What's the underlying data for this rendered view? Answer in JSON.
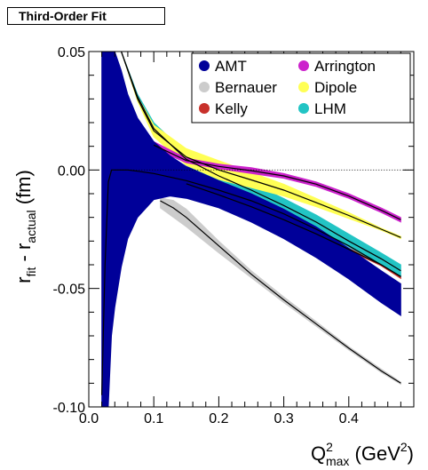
{
  "chart_data": {
    "type": "area",
    "title": "Third-Order Fit",
    "xlabel": {
      "main": "Q",
      "sup": "2",
      "sub": "max",
      "unit": " (GeV",
      "unit_sup": "2",
      "unit_close": ")"
    },
    "ylabel": {
      "main": "r",
      "sub1": "fit",
      "mid": " - r",
      "sub2": "actual",
      "unit": " (fm)"
    },
    "xlim": [
      0.0,
      0.5
    ],
    "ylim": [
      -0.1,
      0.05
    ],
    "x_ticks": [
      "0.0",
      "0.1",
      "0.2",
      "0.3",
      "0.4"
    ],
    "x_tick_values": [
      0.0,
      0.1,
      0.2,
      0.3,
      0.4
    ],
    "y_ticks": [
      "-0.10",
      "-0.05",
      "0.00",
      "0.05"
    ],
    "y_tick_values": [
      -0.1,
      -0.05,
      0.0,
      0.05
    ],
    "reference_line_y": 0.0,
    "legend_position": "top-right",
    "series": [
      {
        "name": "Bernauer",
        "color": "#cccccc",
        "x": [
          0.11,
          0.13,
          0.15,
          0.2,
          0.25,
          0.3,
          0.35,
          0.4,
          0.45,
          0.48
        ],
        "upper": [
          -0.0118,
          -0.0128,
          -0.0165,
          -0.03,
          -0.0425,
          -0.0535,
          -0.064,
          -0.0745,
          -0.084,
          -0.0895
        ],
        "lower": [
          -0.016,
          -0.02,
          -0.024,
          -0.035,
          -0.0455,
          -0.056,
          -0.066,
          -0.076,
          -0.0855,
          -0.0905
        ],
        "center": [
          -0.013,
          -0.016,
          -0.02,
          -0.032,
          -0.044,
          -0.0548,
          -0.065,
          -0.0752,
          -0.0848,
          -0.09
        ]
      },
      {
        "name": "Kelly",
        "color": "#c8312b",
        "x": [
          0.15,
          0.2,
          0.25,
          0.3,
          0.35,
          0.4,
          0.45,
          0.48
        ],
        "upper": [
          -0.0055,
          -0.01,
          -0.015,
          -0.0205,
          -0.0265,
          -0.033,
          -0.0395,
          -0.0445
        ],
        "lower": [
          -0.006,
          -0.011,
          -0.016,
          -0.0215,
          -0.0275,
          -0.034,
          -0.0405,
          -0.0458
        ],
        "center": [
          -0.0058,
          -0.0105,
          -0.0155,
          -0.021,
          -0.027,
          -0.0335,
          -0.04,
          -0.045
        ]
      },
      {
        "name": "LHM",
        "color": "#22c4c4",
        "x": [
          0.05,
          0.075,
          0.1,
          0.15,
          0.2,
          0.25,
          0.3,
          0.35,
          0.4,
          0.45,
          0.48
        ],
        "upper": [
          0.05,
          0.032,
          0.02,
          0.007,
          0.0005,
          -0.0055,
          -0.012,
          -0.019,
          -0.027,
          -0.035,
          -0.04
        ],
        "lower": [
          0.05,
          0.03,
          0.015,
          0.002,
          -0.005,
          -0.011,
          -0.0175,
          -0.0245,
          -0.0325,
          -0.04,
          -0.045
        ],
        "center": [
          0.05,
          0.031,
          0.0175,
          0.0045,
          -0.0025,
          -0.0085,
          -0.015,
          -0.022,
          -0.03,
          -0.0375,
          -0.0425
        ]
      },
      {
        "name": "Dipole",
        "color": "#ffff55",
        "x": [
          0.05,
          0.075,
          0.1,
          0.15,
          0.2,
          0.25,
          0.3,
          0.35,
          0.4,
          0.45,
          0.48
        ],
        "upper": [
          0.05,
          0.031,
          0.019,
          0.009,
          0.004,
          -0.001,
          -0.006,
          -0.012,
          -0.018,
          -0.0245,
          -0.028
        ],
        "lower": [
          0.05,
          0.029,
          0.014,
          0.002,
          -0.004,
          -0.0075,
          -0.011,
          -0.0155,
          -0.0205,
          -0.0255,
          -0.029
        ],
        "center": [
          0.05,
          0.03,
          0.0165,
          0.0055,
          0.0,
          -0.0042,
          -0.0085,
          -0.0138,
          -0.0192,
          -0.025,
          -0.0285
        ]
      },
      {
        "name": "Arrington",
        "color": "#cc22cc",
        "x": [
          0.1,
          0.15,
          0.2,
          0.25,
          0.3,
          0.35,
          0.4,
          0.45,
          0.48
        ],
        "upper": [
          0.012,
          0.005,
          0.0025,
          0.001,
          -0.0015,
          -0.005,
          -0.01,
          -0.016,
          -0.02
        ],
        "lower": [
          0.009,
          0.003,
          0.0005,
          -0.0015,
          -0.0035,
          -0.007,
          -0.012,
          -0.018,
          -0.022
        ],
        "center": [
          0.0105,
          0.004,
          0.0015,
          -0.0003,
          -0.0025,
          -0.006,
          -0.011,
          -0.017,
          -0.021
        ]
      },
      {
        "name": "AMT",
        "color": "#000099",
        "x": [
          0.02,
          0.025,
          0.03,
          0.035,
          0.04,
          0.05,
          0.06,
          0.075,
          0.1,
          0.125,
          0.15,
          0.2,
          0.25,
          0.3,
          0.35,
          0.4,
          0.45,
          0.48
        ],
        "upper": [
          0.05,
          0.05,
          0.05,
          0.05,
          0.05,
          0.042,
          0.032,
          0.022,
          0.012,
          0.006,
          0.0015,
          -0.0045,
          -0.01,
          -0.0165,
          -0.024,
          -0.033,
          -0.0425,
          -0.048
        ],
        "lower": [
          -0.1,
          -0.1,
          -0.1,
          -0.07,
          -0.058,
          -0.041,
          -0.029,
          -0.02,
          -0.0125,
          -0.011,
          -0.012,
          -0.016,
          -0.022,
          -0.029,
          -0.037,
          -0.046,
          -0.056,
          -0.0615
        ],
        "center": [
          -0.095,
          -0.04,
          -0.005,
          0.0,
          0.0,
          0.0,
          0.0,
          -0.0005,
          -0.0015,
          -0.003,
          -0.0045,
          -0.0085,
          -0.013,
          -0.0185,
          -0.025,
          -0.032,
          -0.04,
          -0.045
        ]
      }
    ],
    "legend_order": [
      "AMT",
      "Arrington",
      "Bernauer",
      "Dipole",
      "Kelly",
      "LHM"
    ]
  }
}
